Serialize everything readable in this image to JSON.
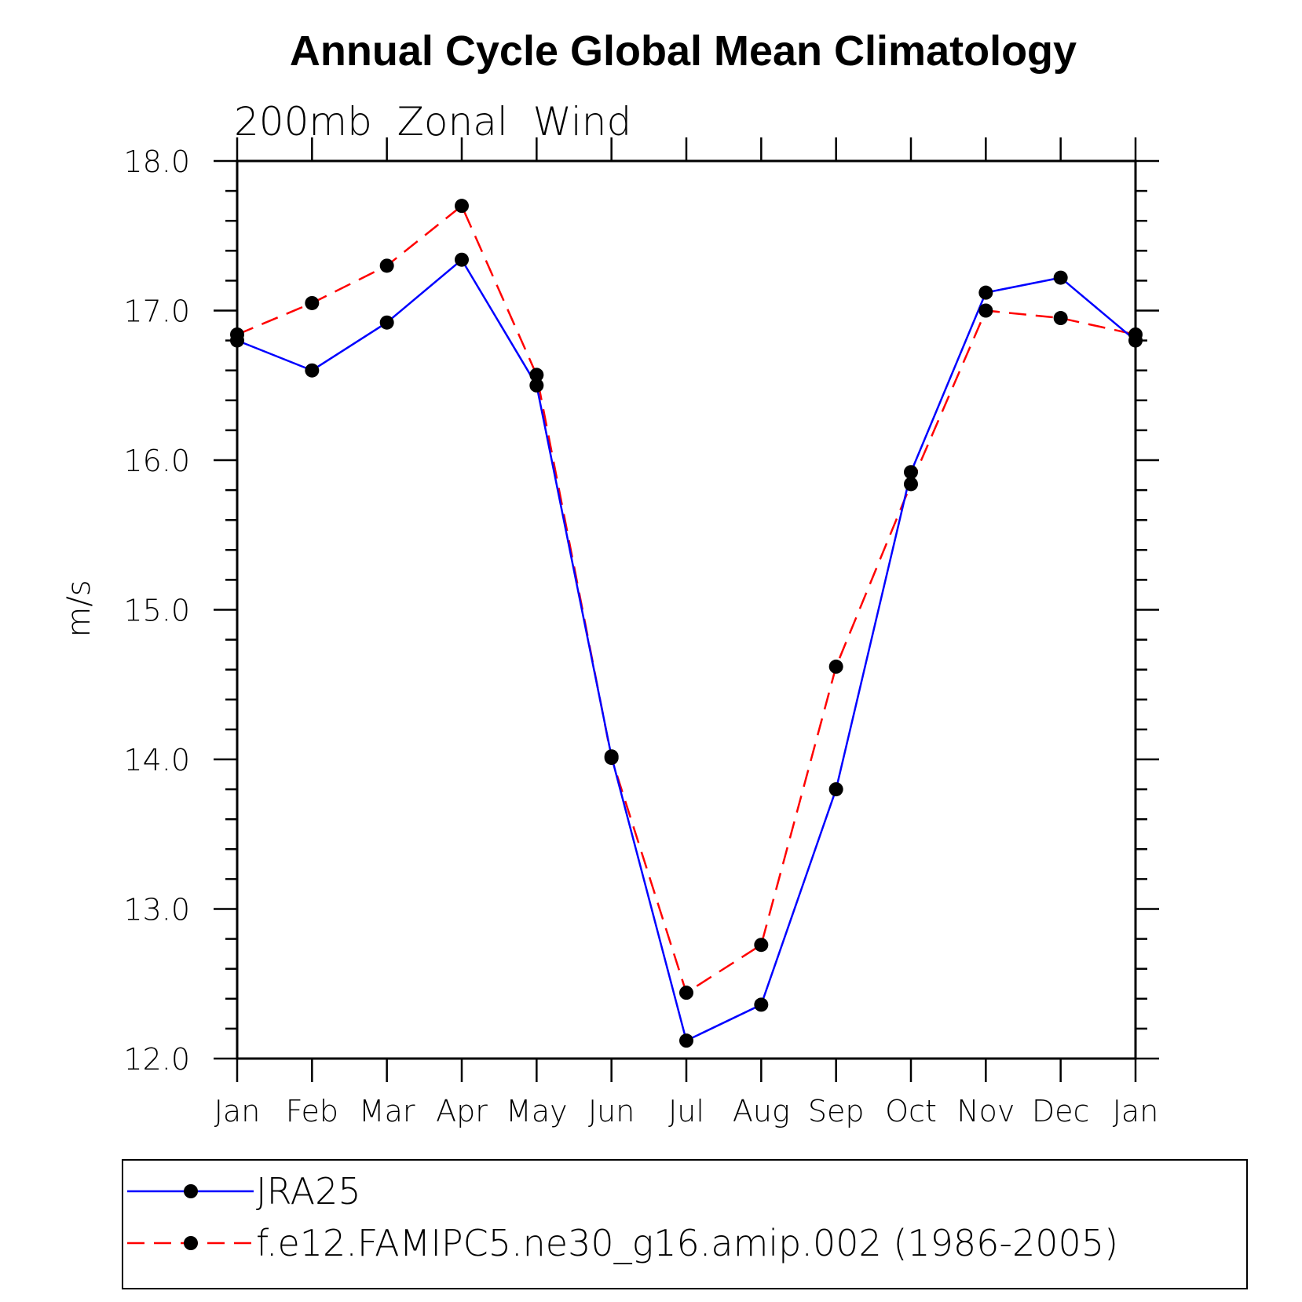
{
  "chart_data": {
    "type": "line",
    "title": "Annual Cycle Global Mean Climatology",
    "subtitle": "200mb  Zonal  Wind",
    "xlabel": "",
    "ylabel": "m/s",
    "categories": [
      "Jan",
      "Feb",
      "Mar",
      "Apr",
      "May",
      "Jun",
      "Jul",
      "Aug",
      "Sep",
      "Oct",
      "Nov",
      "Dec",
      "Jan"
    ],
    "ylim": [
      12.0,
      18.0
    ],
    "yticks": [
      "12.0",
      "13.0",
      "14.0",
      "15.0",
      "16.0",
      "17.0",
      "18.0"
    ],
    "grid": false,
    "legend_placement": "bottom",
    "series": [
      {
        "name": "JRA25",
        "color": "#0000ff",
        "dash": "solid",
        "marker": "filled-circle",
        "values": [
          16.8,
          16.6,
          16.92,
          17.34,
          16.5,
          14.02,
          12.12,
          12.36,
          13.8,
          15.92,
          17.12,
          17.22,
          16.8
        ]
      },
      {
        "name": "f.e12.FAMIPC5.ne30_g16.amip.002 (1986-2005)",
        "color": "#ff0000",
        "dash": "dashed",
        "marker": "filled-circle",
        "values": [
          16.84,
          17.05,
          17.3,
          17.7,
          16.57,
          14.01,
          12.44,
          12.76,
          14.62,
          15.84,
          17.0,
          16.95,
          16.84
        ]
      }
    ]
  }
}
